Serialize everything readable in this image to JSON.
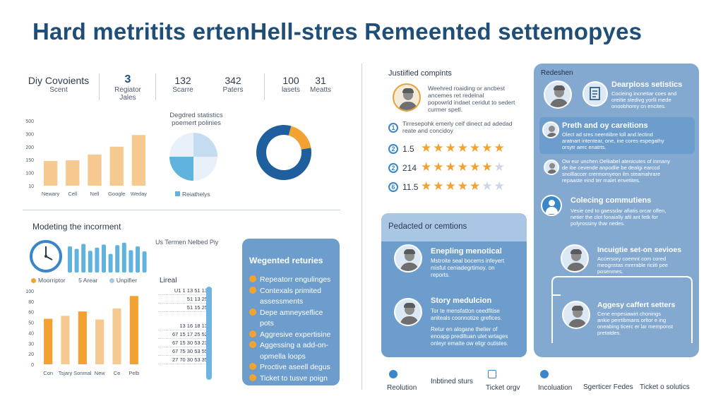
{
  "title": "Hard metritits ertenHell-stres Remeented settemopyes",
  "stats": [
    {
      "value": "",
      "label": "Diy Covoients",
      "sub": "Scent"
    },
    {
      "value": "3",
      "label": "Regiator",
      "sub": "Jales"
    },
    {
      "value": "132",
      "label": "Scarre",
      "sub": ""
    },
    {
      "value": "342",
      "label": "Paters",
      "sub": ""
    },
    {
      "value": "100",
      "label": "lasets",
      "sub": ""
    },
    {
      "value": "31",
      "label": "Meatts",
      "sub": ""
    }
  ],
  "bar_chart": {
    "chart_data": {
      "type": "bar",
      "categories": [
        "Newary",
        "Cell",
        "Nell",
        "Google",
        "Weday"
      ],
      "values": [
        190,
        195,
        240,
        300,
        390
      ],
      "yticks": [
        "500",
        "300",
        "200",
        "150",
        "100",
        "10"
      ],
      "ylim": [
        0,
        500
      ],
      "color": "#f5c98f"
    }
  },
  "pie_section": {
    "title_line1": "Degdred statistics",
    "title_line2": "poemert polinies",
    "legend": "Reiathelys"
  },
  "donut": {
    "chart_data": {
      "type": "pie",
      "values": [
        82,
        18
      ],
      "colors": [
        "#1f5f9e",
        "#f2a230"
      ]
    }
  },
  "modeling": {
    "title": "Modeting the incorment",
    "legend": [
      "Moorriptor",
      "5 Arear",
      "Unpifier"
    ],
    "histogram_values": [
      42,
      38,
      46,
      35,
      40,
      45,
      30,
      44,
      48,
      36,
      42,
      34
    ]
  },
  "bottom_chart": {
    "chart_data": {
      "type": "bar",
      "categories": [
        "Con",
        "Tsjary",
        "Sonmal",
        "New",
        "Ce",
        "Pelb"
      ],
      "values": [
        62,
        66,
        72,
        61,
        76,
        93
      ],
      "yticks": [
        "100",
        "80",
        "60",
        "50",
        "40",
        "30",
        "20",
        "0"
      ],
      "ylim": [
        0,
        100
      ]
    }
  },
  "table_section": {
    "header": "Us Termen Nelbed Piy",
    "label": "Lireal",
    "rows": [
      "U1  1  13 51 13",
      "51 13 25",
      "51 15 25",
      "13 16 18 13",
      "67 15 17 25 52",
      "67 15 30 53 23",
      "67 75 30 53 55",
      "27 70 30 53 35"
    ]
  },
  "weighted": {
    "title": "Wegented returies",
    "items": [
      "Repeatorr engulinges",
      "Contexals primited",
      "assessments",
      "Depe amneyseflice",
      "pots",
      "Aggresive expertisine",
      "Aggessing a add-on-",
      "opmella loops",
      "Proctive aseell degus",
      "Ticket to tusve poign"
    ]
  },
  "justified": {
    "title": "Justiified compints",
    "intro_lines": [
      "Weehred roaiding or ancbest",
      "ancemes ret redelnal",
      "popowrld indaet ceridut to sedert",
      "curmer spetl."
    ],
    "note_lines": [
      "Tirresepohk emerly ceif dinect ad adedad",
      "reate and concidoy"
    ],
    "ratings": [
      {
        "num": "2",
        "value": "1.5",
        "stars": 7,
        "filled": 7
      },
      {
        "num": "2",
        "value": "214",
        "stars": 7,
        "filled": 6
      },
      {
        "num": "6",
        "value": "11.5",
        "stars": 7,
        "filled": 5
      }
    ],
    "note_num": "1"
  },
  "predicted": {
    "title": "Pedacted or cemtions",
    "items": [
      {
        "title": "Enepling menotical",
        "lines": [
          "Mstroite seal bocems infeyert",
          "misfut ceniadegrtimoy. on",
          "reports."
        ]
      },
      {
        "title": "Story medulcion",
        "lines": [
          "Tor te mensfatton ceedfitise",
          "aniteals coonnotize grefices.",
          "",
          "Retur en alogane thelier of",
          "enoapp prediltuan ulet wrtages",
          "onleyr emaite ow eligr outistes."
        ]
      }
    ]
  },
  "redesign": {
    "title": "Redeshen",
    "items": [
      {
        "title": "Dearploss setistics",
        "lines": [
          "Cocieing incnetiar coes and",
          "oreitie stedivg yorlli mede",
          "onoobhomy cn encites."
        ]
      },
      {
        "title": "Preth and oy careitions",
        "lines": [
          "Olect ad sres neentiibre loll and lectind",
          "aratnart intentear, one, ine cores espegathy",
          "orsytr aerc enatrts."
        ]
      },
      {
        "title": "",
        "lines": [
          "Ow eur unchen Oeliiabel atenicutes of inmany",
          "de ibe cevende anpodlie be dealgi earccd",
          "snolllaccer crermomyeon ilm steamahrare",
          "repaaste eind ter malet envetites."
        ]
      },
      {
        "title": "Colecing commutiens",
        "lines": [
          "Vesie ced to gaessdar afiatis orcar offen,",
          "netier the clot fonaially afil ant fetk for",
          "polyrossiny thar nedes."
        ]
      },
      {
        "title": "Incuigtie set-on sevioes",
        "lines": [
          "Accersory coemnt com cored",
          "meognstas mrerable riciiti pee",
          "posenmes."
        ]
      },
      {
        "title": "Aggesy caffert setters",
        "lines": [
          "Cene enpesiawirt chonings",
          "ankie perrtibmans orltor e ing",
          "oneabing ticerc er lar memponst",
          "pretatdes."
        ]
      }
    ]
  },
  "footer": [
    "Reolution",
    "Inbtined sturs",
    "Ticket orgv",
    "Incoluation",
    "Sgerticer Fedes",
    "Ticket o solutics"
  ],
  "colors": {
    "title": "#1f4e79",
    "accent_orange": "#f2a230",
    "accent_blue": "#3a86c8",
    "card_blue": "#6d9dcc",
    "card_blue_light": "#a9c6e4",
    "panel_blue": "#84a9d1"
  }
}
